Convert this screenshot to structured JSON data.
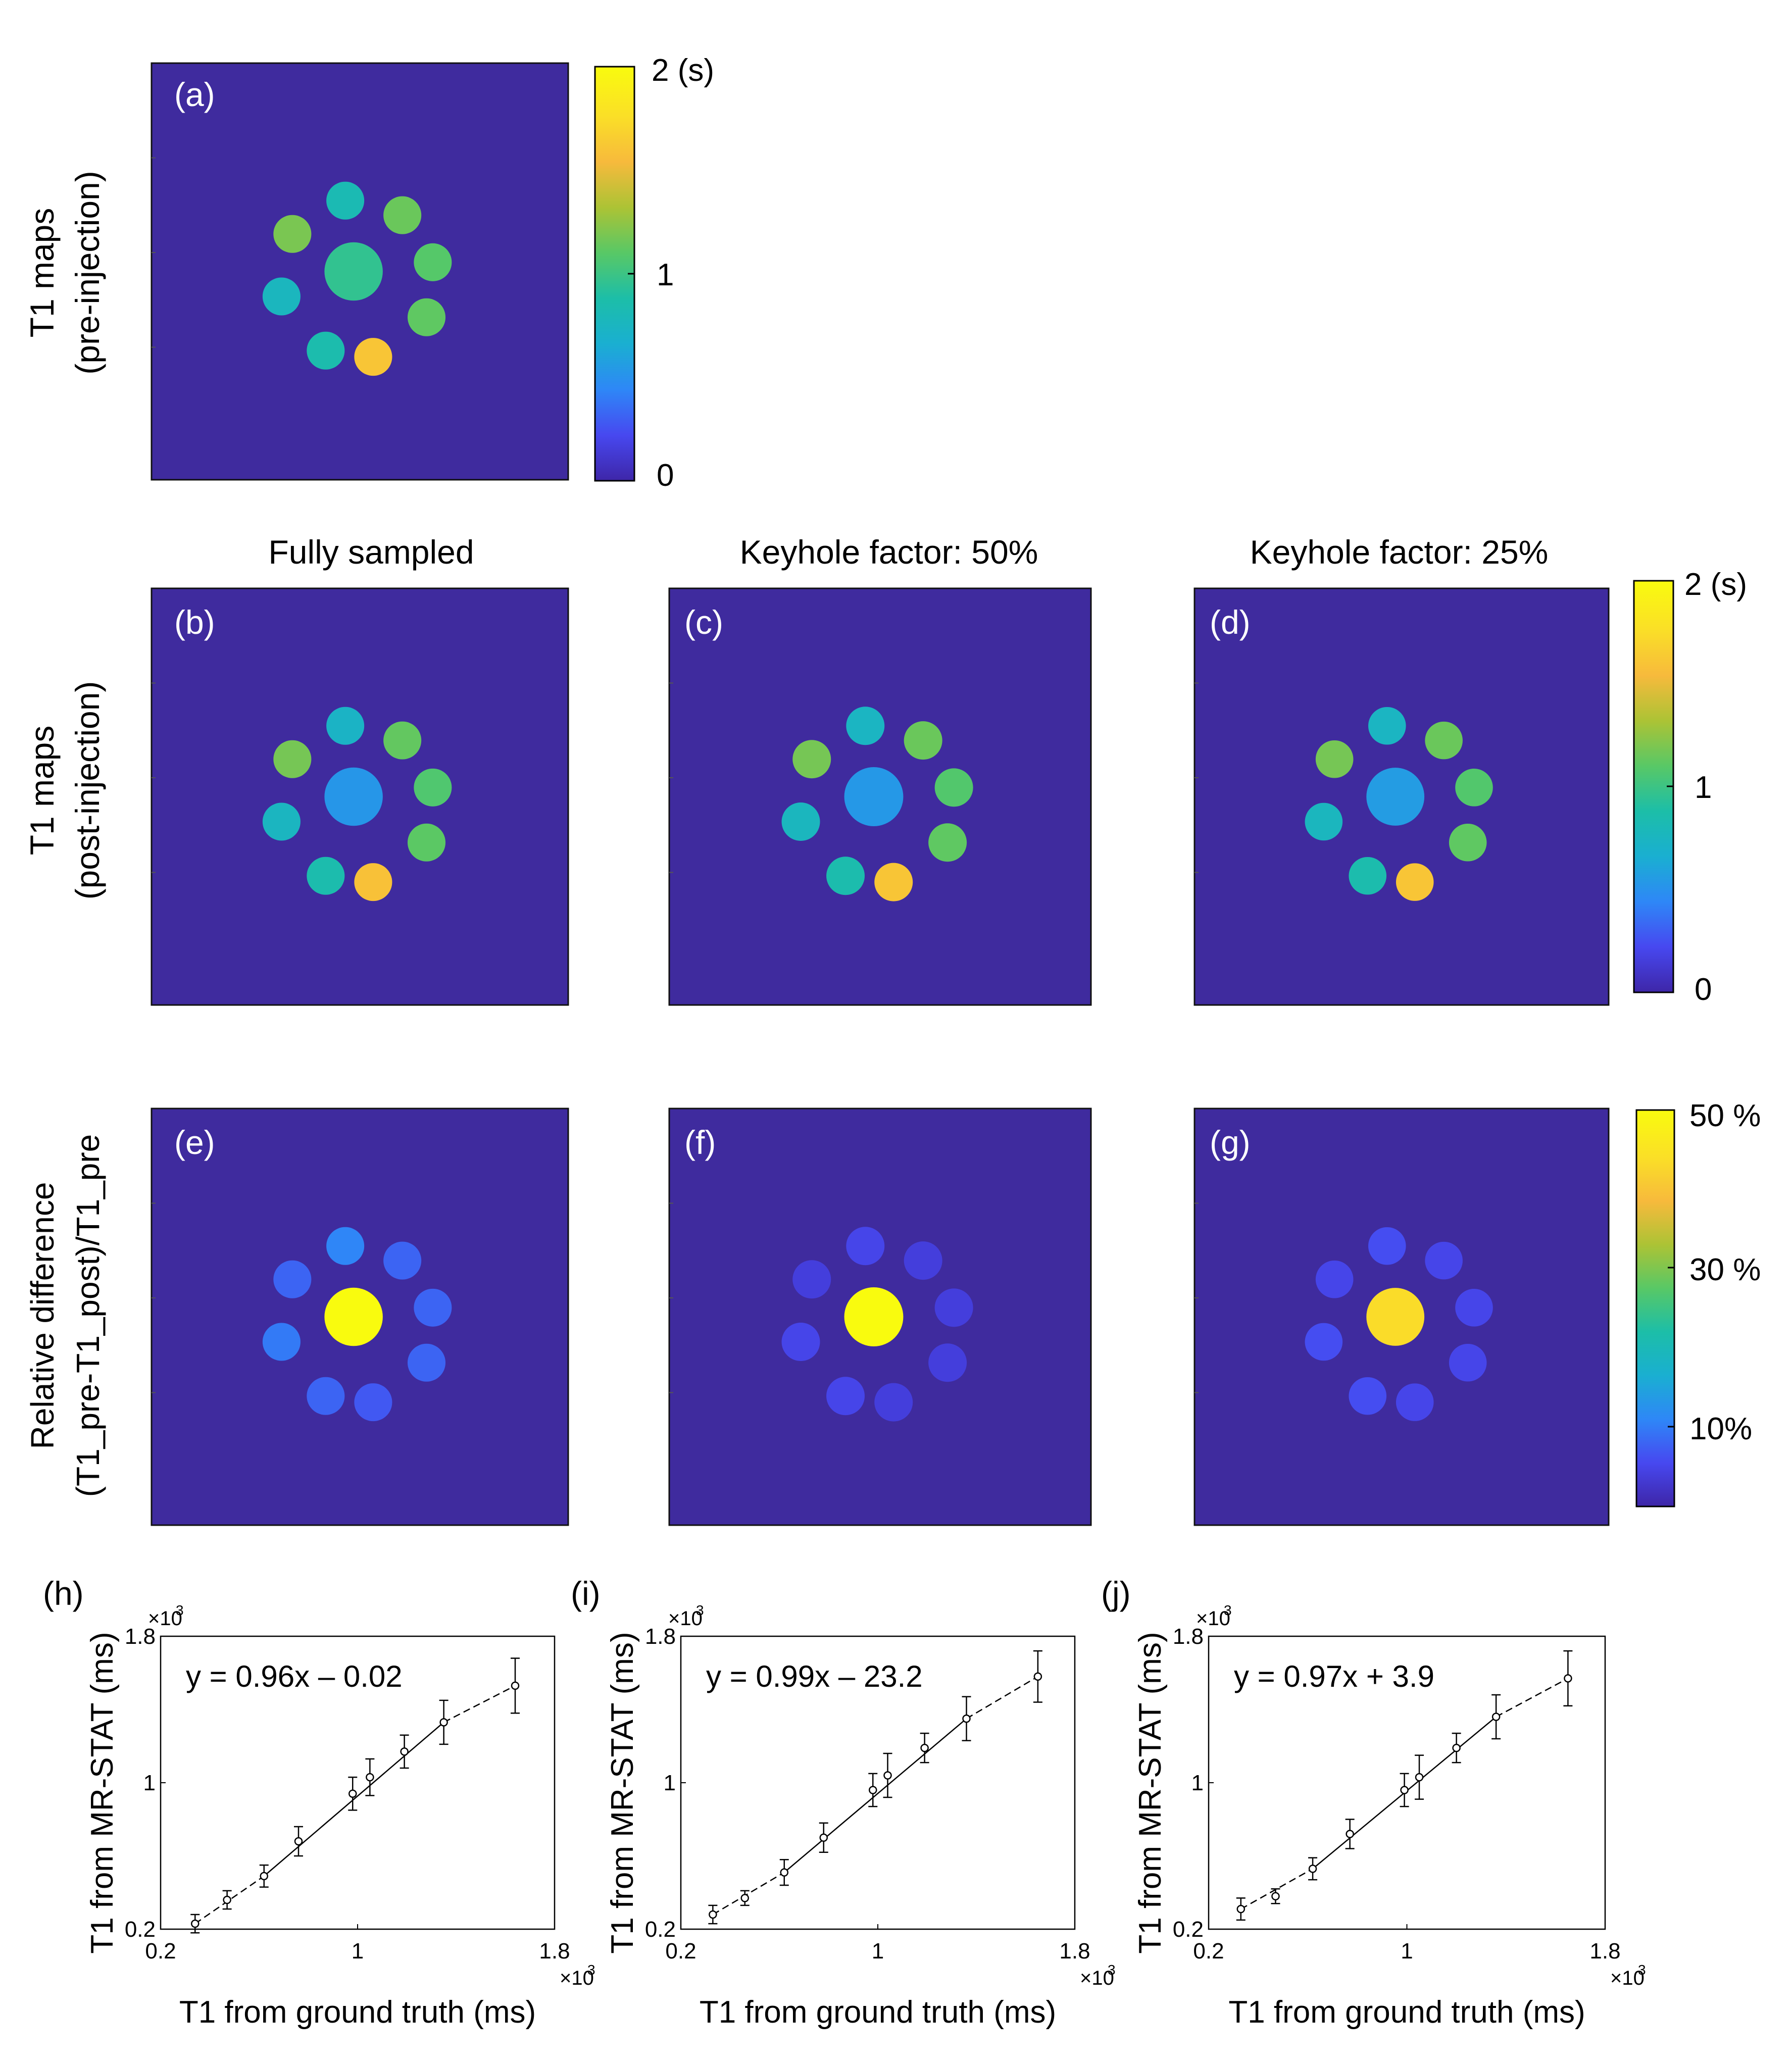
{
  "figure": {
    "row_labels": {
      "pre_line1": "T1 maps",
      "pre_line2": "(pre-injection)",
      "post_line1": "T1 maps",
      "post_line2": "(post-injection)",
      "diff_line1": "Relative difference",
      "diff_line2": "(T1_pre-T1_post)/T1_pre"
    },
    "column_titles": [
      "Fully sampled",
      "Keyhole factor: 50%",
      "Keyhole factor: 25%"
    ],
    "panel_labels": [
      "(a)",
      "(b)",
      "(c)",
      "(d)",
      "(e)",
      "(f)",
      "(g)"
    ],
    "colorbars": {
      "t1_pre": {
        "top": "2 (s)",
        "mid": "1",
        "bottom": "0"
      },
      "t1_post": {
        "top": "2 (s)",
        "mid": "1",
        "bottom": "0"
      },
      "diff": {
        "top": "50 %",
        "mid": "30 %",
        "low": "10%"
      }
    },
    "colors": {
      "background": "#3F2B9E",
      "colormap": [
        "#3E26A8",
        "#4748F0",
        "#2E87F7",
        "#1AAFD1",
        "#1CBEA8",
        "#58C866",
        "#ACC335",
        "#F7BA3C",
        "#FADF27",
        "#F9FB0E"
      ]
    }
  },
  "phantom": {
    "vials_t1_pre_s": [
      0.83,
      1.16,
      1.1,
      1.13,
      1.62,
      0.86,
      0.77,
      1.2,
      0.97
    ],
    "vials_t1_post_s": {
      "fully": [
        0.73,
        1.14,
        1.08,
        1.12,
        1.6,
        0.86,
        0.76,
        1.19,
        0.53
      ],
      "k50": [
        0.75,
        1.16,
        1.09,
        1.13,
        1.62,
        0.86,
        0.77,
        1.19,
        0.54
      ],
      "k25": [
        0.75,
        1.16,
        1.09,
        1.13,
        1.62,
        0.86,
        0.77,
        1.19,
        0.56
      ]
    },
    "vials_diff_pct": {
      "fully": [
        11,
        8,
        8,
        8,
        7,
        8,
        10,
        8,
        50
      ],
      "k50": [
        5,
        4,
        4,
        4,
        4,
        5,
        5,
        4,
        50
      ],
      "k25": [
        6,
        5,
        5,
        5,
        5,
        6,
        6,
        5,
        44
      ]
    }
  },
  "chart_data": [
    {
      "type": "scatter",
      "panel": "(h)",
      "xlabel": "T1 from ground truth (ms)",
      "ylabel": "T1 from MR-STAT (ms)",
      "xlim": [
        0.2,
        1.8
      ],
      "ylim": [
        0.2,
        1.8
      ],
      "xticks": [
        "0.2",
        "1",
        "1.8"
      ],
      "yticks": [
        "0.2",
        "1",
        "1.8"
      ],
      "exponent": "×10",
      "exponent_power": "3",
      "equation": "y = 0.96x  ‒  0.02",
      "x": [
        0.34,
        0.47,
        0.62,
        0.76,
        0.98,
        1.05,
        1.19,
        1.35,
        1.64
      ],
      "y": [
        0.23,
        0.36,
        0.49,
        0.68,
        0.94,
        1.03,
        1.17,
        1.33,
        1.53
      ],
      "err": [
        0.05,
        0.05,
        0.06,
        0.08,
        0.09,
        0.1,
        0.09,
        0.12,
        0.15
      ]
    },
    {
      "type": "scatter",
      "panel": "(i)",
      "xlabel": "T1 from ground truth (ms)",
      "ylabel": "T1 from MR-STAT (ms)",
      "xlim": [
        0.2,
        1.8
      ],
      "ylim": [
        0.2,
        1.8
      ],
      "xticks": [
        "0.2",
        "1",
        "1.8"
      ],
      "yticks": [
        "0.2",
        "1",
        "1.8"
      ],
      "exponent": "×10",
      "exponent_power": "3",
      "equation": "y = 0.99x  ‒  23.2",
      "x": [
        0.33,
        0.46,
        0.62,
        0.78,
        0.98,
        1.04,
        1.19,
        1.36,
        1.65
      ],
      "y": [
        0.28,
        0.37,
        0.51,
        0.7,
        0.96,
        1.04,
        1.19,
        1.35,
        1.58
      ],
      "err": [
        0.05,
        0.04,
        0.07,
        0.08,
        0.09,
        0.12,
        0.08,
        0.12,
        0.14
      ]
    },
    {
      "type": "scatter",
      "panel": "(j)",
      "xlabel": "T1 from ground truth (ms)",
      "ylabel": "T1 from MR-STAT (ms)",
      "xlim": [
        0.2,
        1.8
      ],
      "ylim": [
        0.2,
        1.8
      ],
      "xticks": [
        "0.2",
        "1",
        "1.8"
      ],
      "yticks": [
        "0.2",
        "1",
        "1.8"
      ],
      "exponent": "×10",
      "exponent_power": "3",
      "equation": "y = 0.97x + 3.9",
      "x": [
        0.33,
        0.47,
        0.62,
        0.77,
        0.99,
        1.05,
        1.2,
        1.36,
        1.65
      ],
      "y": [
        0.31,
        0.38,
        0.53,
        0.72,
        0.96,
        1.03,
        1.19,
        1.36,
        1.57
      ],
      "err": [
        0.06,
        0.04,
        0.06,
        0.08,
        0.09,
        0.12,
        0.08,
        0.12,
        0.15
      ]
    }
  ]
}
